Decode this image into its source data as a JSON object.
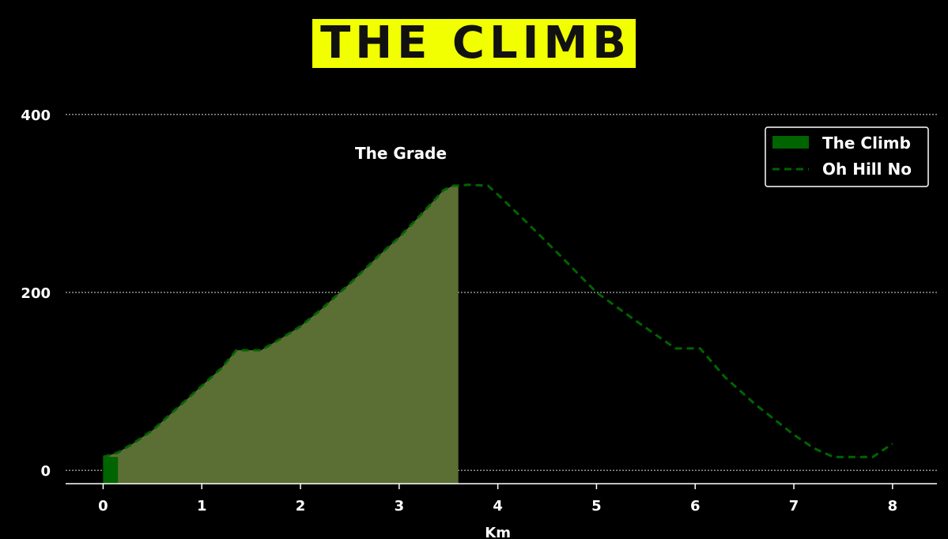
{
  "title": "THE CLIMB",
  "colors": {
    "background": "#000000",
    "title_bg": "#f2ff00",
    "title_text": "#111111",
    "fill": "#5b6e33",
    "climb": "#006400",
    "line": "#006400"
  },
  "chart_data": {
    "type": "area",
    "xlabel": "Km",
    "ylabel": "",
    "annotation": "The Grade",
    "xlim": [
      -0.38,
      8.45
    ],
    "ylim": [
      -15,
      415
    ],
    "x_ticks": [
      0,
      1,
      2,
      3,
      4,
      5,
      6,
      7,
      8
    ],
    "y_ticks": [
      0,
      200,
      400
    ],
    "grid": "horizontal dotted",
    "legend_position": "upper right",
    "legend": [
      {
        "label": "The Climb",
        "style": "patch"
      },
      {
        "label": "Oh Hill No",
        "style": "dashed"
      }
    ],
    "series": [
      {
        "name": "Oh Hill No",
        "x": [
          0,
          0.15,
          0.3,
          0.5,
          0.8,
          1.0,
          1.2,
          1.35,
          1.6,
          1.8,
          2.0,
          2.2,
          2.5,
          2.8,
          3.0,
          3.2,
          3.45,
          3.55,
          3.6,
          3.7,
          3.9,
          4.0,
          4.3,
          4.6,
          5.0,
          5.4,
          5.8,
          6.05,
          6.3,
          6.6,
          7.0,
          7.2,
          7.4,
          7.6,
          7.8,
          8.0
        ],
        "y": [
          15,
          20,
          30,
          45,
          75,
          95,
          115,
          135,
          135,
          148,
          162,
          180,
          210,
          242,
          262,
          285,
          315,
          320,
          320,
          321,
          320,
          310,
          278,
          245,
          200,
          168,
          137,
          137,
          105,
          75,
          40,
          25,
          15,
          15,
          15,
          30
        ]
      }
    ],
    "fill_between": [
      0,
      3.6
    ],
    "climb_bar": [
      0,
      0.15
    ]
  }
}
